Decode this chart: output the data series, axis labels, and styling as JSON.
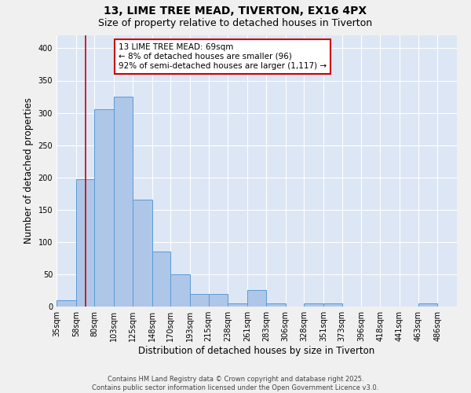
{
  "title1": "13, LIME TREE MEAD, TIVERTON, EX16 4PX",
  "title2": "Size of property relative to detached houses in Tiverton",
  "xlabel": "Distribution of detached houses by size in Tiverton",
  "ylabel": "Number of detached properties",
  "bar_left_edges": [
    35,
    58,
    80,
    103,
    125,
    148,
    170,
    193,
    215,
    238,
    261,
    283,
    306,
    328,
    351,
    373,
    396,
    418,
    441,
    463
  ],
  "bar_widths": [
    23,
    22,
    23,
    22,
    23,
    22,
    23,
    22,
    23,
    23,
    22,
    23,
    22,
    23,
    22,
    23,
    22,
    23,
    22,
    23
  ],
  "bar_heights": [
    10,
    197,
    305,
    325,
    165,
    85,
    50,
    20,
    20,
    5,
    25,
    5,
    0,
    5,
    5,
    0,
    0,
    0,
    0,
    5
  ],
  "bar_facecolor": "#aec6e8",
  "bar_edgecolor": "#5b9bd5",
  "background_color": "#dce6f5",
  "grid_color": "#ffffff",
  "property_line_x": 69,
  "property_line_color": "#cc0000",
  "annotation_line1": "13 LIME TREE MEAD: 69sqm",
  "annotation_line2": "← 8% of detached houses are smaller (96)",
  "annotation_line3": "92% of semi-detached houses are larger (1,117) →",
  "annotation_box_color": "#cc0000",
  "ylim": [
    0,
    420
  ],
  "yticks": [
    0,
    50,
    100,
    150,
    200,
    250,
    300,
    350,
    400
  ],
  "tick_labels": [
    "35sqm",
    "58sqm",
    "80sqm",
    "103sqm",
    "125sqm",
    "148sqm",
    "170sqm",
    "193sqm",
    "215sqm",
    "238sqm",
    "261sqm",
    "283sqm",
    "306sqm",
    "328sqm",
    "351sqm",
    "373sqm",
    "396sqm",
    "418sqm",
    "441sqm",
    "463sqm",
    "486sqm"
  ],
  "footer_text": "Contains HM Land Registry data © Crown copyright and database right 2025.\nContains public sector information licensed under the Open Government Licence v3.0.",
  "title_fontsize": 10,
  "subtitle_fontsize": 9,
  "axis_label_fontsize": 8.5,
  "tick_fontsize": 7,
  "annotation_fontsize": 7.5,
  "footer_fontsize": 6
}
